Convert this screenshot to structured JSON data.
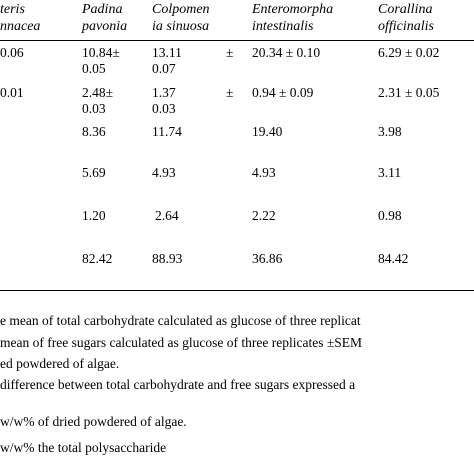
{
  "table": {
    "headers": [
      [
        "teris",
        "nnacea"
      ],
      [
        "Padina",
        "pavonia"
      ],
      [
        "Colpomen",
        "ia sinuosa"
      ],
      [
        "Enteromorpha",
        "intestinalis"
      ],
      [
        "Corallina",
        "officinalis"
      ]
    ],
    "rows": [
      [
        [
          "0.06"
        ],
        [
          "10.84±",
          "0.05"
        ],
        [
          "13.11",
          "0.07"
        ],
        [
          "20.34 ± 0.10"
        ],
        [
          "6.29 ± 0.02"
        ]
      ],
      [
        [
          "0.01"
        ],
        [
          "2.48±",
          "0.03"
        ],
        [
          "1.37",
          "0.03"
        ],
        [
          "0.94 ± 0.09"
        ],
        [
          "2.31 ± 0.05"
        ]
      ],
      [
        [
          ""
        ],
        [
          "8.36"
        ],
        [
          "11.74"
        ],
        [
          "19.40"
        ],
        [
          "3.98"
        ]
      ],
      [
        [
          ""
        ],
        [
          "5.69"
        ],
        [
          "4.93"
        ],
        [
          "4.93"
        ],
        [
          "3.11"
        ]
      ],
      [
        [
          ""
        ],
        [
          "1.20"
        ],
        [
          "2.64"
        ],
        [
          "2.22"
        ],
        [
          "0.98"
        ]
      ],
      [
        [
          ""
        ],
        [
          "82.42"
        ],
        [
          "88.93"
        ],
        [
          "36.86"
        ],
        [
          "84.42"
        ]
      ]
    ],
    "pm_marks": [
      "±",
      "±"
    ]
  },
  "footnotes": [
    "e mean of total carbohydrate calculated as glucose of three replicat",
    " mean of free sugars calculated as glucose of three replicates ±SEM",
    "ed powdered of algae.",
    " difference between total carbohydrate and free sugars expressed a",
    "w/w% of dried powdered of algae.",
    "w/w% the total polysaccharide"
  ]
}
